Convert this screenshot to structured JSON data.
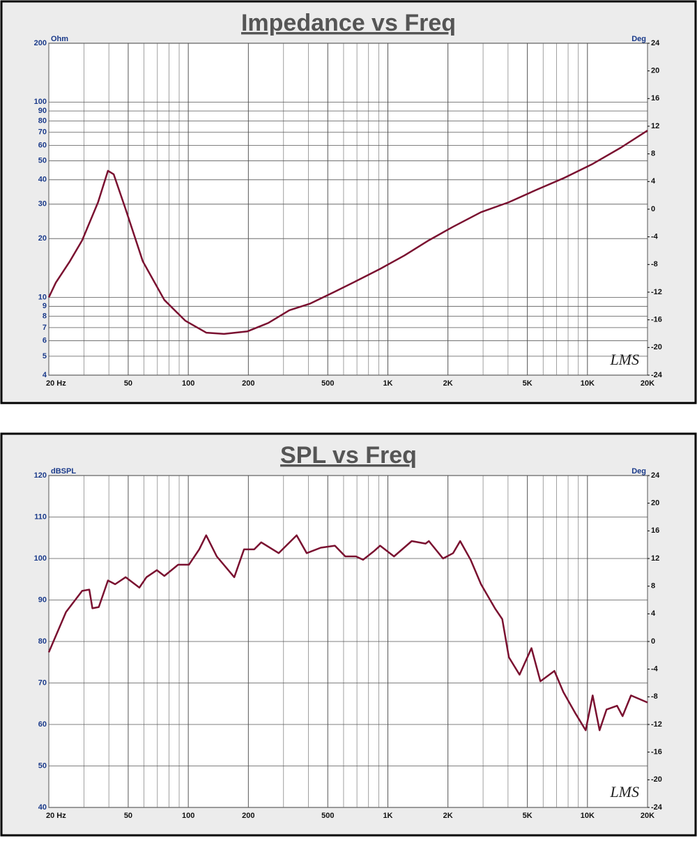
{
  "chart_data": [
    {
      "type": "line",
      "title": "Impedance vs Freq",
      "y_label": "Ohm",
      "y2_label": "Deg",
      "watermark": "LMS",
      "xlog": true,
      "ylog": true,
      "grid": true,
      "color": "#7a1030",
      "xlim": [
        20,
        20000
      ],
      "ylim": [
        4,
        200
      ],
      "y2lim": [
        -24,
        24
      ],
      "xticks": [
        {
          "value": 20,
          "label": "20 Hz"
        },
        50,
        100,
        200,
        500,
        {
          "value": 1000,
          "label": "1K"
        },
        {
          "value": 2000,
          "label": "2K"
        },
        {
          "value": 5000,
          "label": "5K"
        },
        {
          "value": 10000,
          "label": "10K"
        },
        {
          "value": 20000,
          "label": "20K"
        }
      ],
      "xminor": [
        30,
        40,
        60,
        70,
        80,
        90,
        300,
        400,
        600,
        700,
        800,
        900,
        3000,
        4000,
        6000,
        7000,
        8000,
        9000
      ],
      "yticks": [
        4,
        5,
        6,
        7,
        8,
        9,
        10,
        20,
        30,
        40,
        50,
        60,
        70,
        80,
        90,
        100,
        200
      ],
      "y2ticks": [
        -24,
        -20,
        -16,
        -12,
        -8,
        -4,
        0,
        4,
        8,
        12,
        16,
        20,
        24
      ],
      "x": [
        20,
        21.7,
        25.5,
        29.4,
        35.3,
        39.6,
        42.3,
        48.5,
        59.2,
        75.9,
        96.6,
        123,
        151,
        198,
        252,
        321,
        409,
        543,
        692,
        915,
        1212,
        1605,
        2124,
        2928,
        4041,
        5577,
        7696,
        10620,
        14650,
        20000
      ],
      "values": [
        10,
        11.9,
        15.3,
        19.6,
        30.7,
        44.5,
        42.7,
        28.3,
        15.3,
        9.7,
        7.6,
        6.6,
        6.5,
        6.7,
        7.4,
        8.6,
        9.3,
        10.7,
        12.1,
        14.0,
        16.4,
        19.6,
        23.0,
        27.3,
        30.7,
        35.6,
        41.0,
        48.2,
        58.3,
        71.5
      ]
    },
    {
      "type": "line",
      "title": "SPL vs Freq",
      "y_label": "dBSPL",
      "y2_label": "Deg",
      "watermark": "LMS",
      "xlog": true,
      "ylog": false,
      "grid": true,
      "color": "#7a1030",
      "xlim": [
        20,
        20000
      ],
      "ylim": [
        40,
        120
      ],
      "y2lim": [
        -24,
        24
      ],
      "xticks": [
        {
          "value": 20,
          "label": "20 Hz"
        },
        50,
        100,
        200,
        500,
        {
          "value": 1000,
          "label": "1K"
        },
        {
          "value": 2000,
          "label": "2K"
        },
        {
          "value": 5000,
          "label": "5K"
        },
        {
          "value": 10000,
          "label": "10K"
        },
        {
          "value": 20000,
          "label": "20K"
        }
      ],
      "xminor": [
        30,
        40,
        60,
        70,
        80,
        90,
        300,
        400,
        600,
        700,
        800,
        900,
        3000,
        4000,
        6000,
        7000,
        8000,
        9000
      ],
      "yticks": [
        40,
        50,
        60,
        70,
        80,
        90,
        100,
        110,
        120
      ],
      "y2ticks": [
        -24,
        -20,
        -16,
        -12,
        -8,
        -4,
        0,
        4,
        8,
        12,
        16,
        20,
        24
      ],
      "x": [
        20,
        24.4,
        29.4,
        31.9,
        33.1,
        35.6,
        39.6,
        43,
        48.5,
        56.9,
        61.7,
        69.6,
        75.9,
        89,
        100.7,
        113.4,
        122.9,
        138.9,
        170,
        190.2,
        214,
        232,
        284,
        349,
        392,
        461,
        543,
        612,
        692,
        751,
        848,
        915,
        1074,
        1317,
        1546,
        1605,
        1890,
        2124,
        2302,
        2599,
        2928,
        3439,
        3742,
        4041,
        4570,
        5242,
        5810,
        6829,
        7576,
        8676,
        9800,
        10620,
        11500,
        12460,
        14070,
        15000,
        16530,
        20000
      ],
      "values": [
        77.4,
        87.1,
        92.2,
        92.5,
        88.0,
        88.3,
        94.7,
        93.8,
        95.5,
        93.0,
        95.5,
        97.2,
        95.8,
        98.5,
        98.5,
        102.2,
        105.6,
        100.5,
        95.5,
        102.2,
        102.2,
        103.9,
        101.3,
        105.6,
        101.3,
        102.6,
        103.1,
        100.5,
        100.5,
        99.7,
        101.7,
        103.1,
        100.5,
        104.2,
        103.6,
        104.2,
        100.0,
        101.3,
        104.2,
        99.7,
        93.8,
        88.0,
        85.4,
        76.2,
        72.0,
        78.4,
        70.4,
        72.9,
        67.8,
        62.8,
        58.6,
        67.0,
        58.6,
        63.6,
        64.5,
        62.0,
        67.0,
        65.3
      ]
    }
  ]
}
